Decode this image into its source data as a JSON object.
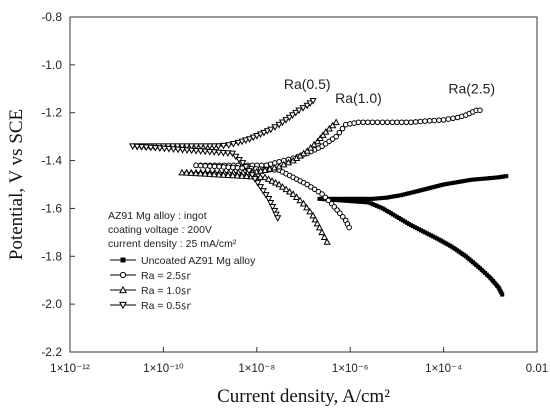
{
  "chart_data": {
    "type": "line",
    "xlabel": "Current density, A/cm²",
    "ylabel": "Potential, V vs SCE",
    "xscale": "log",
    "xlim": [
      1e-12,
      0.01
    ],
    "ylim": [
      -2.2,
      -0.8
    ],
    "xticks": [
      {
        "value": 1e-12,
        "label": "1×10⁻¹²"
      },
      {
        "value": 1e-10,
        "label": "1×10⁻¹⁰"
      },
      {
        "value": 1e-08,
        "label": "1×10⁻⁸"
      },
      {
        "value": 1e-06,
        "label": "1×10⁻⁶"
      },
      {
        "value": 0.0001,
        "label": "1×10⁻⁴"
      },
      {
        "value": 0.01,
        "label": "0.01"
      }
    ],
    "yticks": [
      {
        "value": -0.8,
        "label": "-0.8"
      },
      {
        "value": -1.0,
        "label": "-1.0"
      },
      {
        "value": -1.2,
        "label": "-1.2"
      },
      {
        "value": -1.4,
        "label": "-1.4"
      },
      {
        "value": -1.6,
        "label": "-1.6"
      },
      {
        "value": -1.8,
        "label": "-1.8"
      },
      {
        "value": -2.0,
        "label": "-2.0"
      },
      {
        "value": -2.2,
        "label": "-2.2"
      }
    ],
    "info_lines": [
      "AZ91 Mg alloy : ingot",
      "coating voltage : 200V",
      "current density : 25 mA/cm²"
    ],
    "annotations": [
      {
        "text": "Ra(0.5)",
        "x": 1.2e-07,
        "y": -1.1
      },
      {
        "text": "Ra(1.0)",
        "x": 1.5e-06,
        "y": -1.16
      },
      {
        "text": "Ra(2.5)",
        "x": 0.0004,
        "y": -1.12
      }
    ],
    "series": [
      {
        "name": "Uncoated AZ91 Mg alloy",
        "marker": "square-filled",
        "color": "#000000",
        "anodic": [
          [
            1.7e-06,
            -1.56
          ],
          [
            3e-06,
            -1.56
          ],
          [
            6e-06,
            -1.555
          ],
          [
            1.2e-05,
            -1.545
          ],
          [
            2.5e-05,
            -1.53
          ],
          [
            5e-05,
            -1.515
          ],
          [
            0.0001,
            -1.5
          ],
          [
            0.0002,
            -1.49
          ],
          [
            0.0004,
            -1.48
          ],
          [
            0.0008,
            -1.475
          ],
          [
            0.0015,
            -1.47
          ],
          [
            0.0022,
            -1.465
          ]
        ],
        "cathodic": [
          [
            1.7e-06,
            -1.56
          ],
          [
            1.2e-06,
            -1.56
          ],
          [
            8e-07,
            -1.56
          ],
          [
            5e-07,
            -1.56
          ],
          [
            3e-07,
            -1.56
          ],
          [
            2.2e-07,
            -1.56
          ],
          [
            2.5e-06,
            -1.575
          ],
          [
            5e-06,
            -1.6
          ],
          [
            1e-05,
            -1.635
          ],
          [
            2e-05,
            -1.67
          ],
          [
            4e-05,
            -1.7
          ],
          [
            8e-05,
            -1.73
          ],
          [
            0.00015,
            -1.76
          ],
          [
            0.0003,
            -1.8
          ],
          [
            0.0006,
            -1.85
          ],
          [
            0.001,
            -1.89
          ],
          [
            0.0015,
            -1.93
          ],
          [
            0.0018,
            -1.96
          ]
        ]
      },
      {
        "name": "Ra = 2.5㏛",
        "marker": "circle-open",
        "color": "#000000",
        "anodic": [
          [
            1.6e-08,
            -1.42
          ],
          [
            3e-08,
            -1.405
          ],
          [
            6e-08,
            -1.39
          ],
          [
            1.2e-07,
            -1.37
          ],
          [
            2.5e-07,
            -1.34
          ],
          [
            5e-07,
            -1.3
          ],
          [
            8e-07,
            -1.25
          ],
          [
            1.5e-06,
            -1.24
          ],
          [
            3e-06,
            -1.24
          ],
          [
            8e-06,
            -1.24
          ],
          [
            2e-05,
            -1.24
          ],
          [
            4e-05,
            -1.235
          ],
          [
            0.0001,
            -1.23
          ],
          [
            0.0002,
            -1.22
          ],
          [
            0.0003,
            -1.21
          ],
          [
            0.0005,
            -1.19
          ],
          [
            0.0006,
            -1.19
          ]
        ],
        "cathodic": [
          [
            1.6e-08,
            -1.42
          ],
          [
            8e-09,
            -1.42
          ],
          [
            4e-09,
            -1.42
          ],
          [
            2e-09,
            -1.42
          ],
          [
            1e-09,
            -1.42
          ],
          [
            5e-10,
            -1.42
          ],
          [
            3e-08,
            -1.44
          ],
          [
            6e-08,
            -1.47
          ],
          [
            1.2e-07,
            -1.5
          ],
          [
            2.5e-07,
            -1.54
          ],
          [
            4e-07,
            -1.58
          ],
          [
            6e-07,
            -1.62
          ],
          [
            8e-07,
            -1.65
          ],
          [
            9.5e-07,
            -1.68
          ]
        ]
      },
      {
        "name": "Ra = 1.0㏛",
        "marker": "triangle-open",
        "color": "#000000",
        "anodic": [
          [
            8e-09,
            -1.45
          ],
          [
            1.5e-08,
            -1.44
          ],
          [
            3e-08,
            -1.425
          ],
          [
            6e-08,
            -1.4
          ],
          [
            1.2e-07,
            -1.36
          ],
          [
            2e-07,
            -1.32
          ],
          [
            3e-07,
            -1.28
          ],
          [
            5e-07,
            -1.24
          ]
        ],
        "cathodic": [
          [
            8e-09,
            -1.45
          ],
          [
            4e-09,
            -1.45
          ],
          [
            2e-09,
            -1.45
          ],
          [
            1e-09,
            -1.45
          ],
          [
            5e-10,
            -1.45
          ],
          [
            2.5e-10,
            -1.45
          ],
          [
            1.5e-08,
            -1.47
          ],
          [
            3e-08,
            -1.5
          ],
          [
            6e-08,
            -1.54
          ],
          [
            1e-07,
            -1.58
          ],
          [
            1.6e-07,
            -1.63
          ],
          [
            2.2e-07,
            -1.68
          ],
          [
            2.8e-07,
            -1.72
          ],
          [
            3.2e-07,
            -1.74
          ]
        ]
      },
      {
        "name": "Ra = 0.5㏛",
        "marker": "triangle-down-open",
        "color": "#000000",
        "anodic": [
          [
            1.5e-09,
            -1.34
          ],
          [
            2.5e-09,
            -1.335
          ],
          [
            4e-09,
            -1.325
          ],
          [
            7e-09,
            -1.31
          ],
          [
            1.2e-08,
            -1.29
          ],
          [
            2e-08,
            -1.27
          ],
          [
            3e-08,
            -1.25
          ],
          [
            5e-08,
            -1.22
          ],
          [
            8e-08,
            -1.19
          ],
          [
            1.2e-07,
            -1.17
          ],
          [
            1.6e-07,
            -1.15
          ]
        ],
        "cathodic": [
          [
            1.5e-09,
            -1.34
          ],
          [
            8e-10,
            -1.34
          ],
          [
            4e-10,
            -1.34
          ],
          [
            2e-10,
            -1.34
          ],
          [
            1e-10,
            -1.34
          ],
          [
            5e-11,
            -1.34
          ],
          [
            2.2e-11,
            -1.34
          ],
          [
            3e-09,
            -1.37
          ],
          [
            5e-09,
            -1.41
          ],
          [
            8e-09,
            -1.46
          ],
          [
            1.2e-08,
            -1.51
          ],
          [
            1.8e-08,
            -1.56
          ],
          [
            2.4e-08,
            -1.61
          ],
          [
            2.8e-08,
            -1.64
          ]
        ]
      }
    ]
  }
}
